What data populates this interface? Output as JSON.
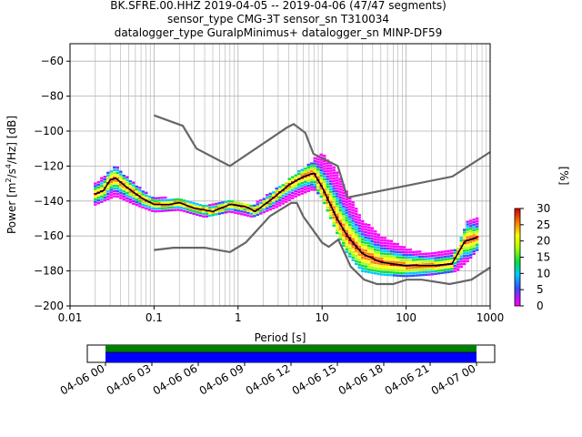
{
  "header": {
    "line1": "BK.SFRE.00.HHZ   2019-04-05 -- 2019-04-06  (47/47 segments)",
    "line2": "sensor_type CMG-3T sensor_sn T310034",
    "line3": "datalogger_type GuralpMinimus+ datalogger_sn MINP-DF59"
  },
  "colorbar": {
    "label": "[%]",
    "ticks": [
      "0",
      "5",
      "10",
      "15",
      "20",
      "25",
      "30"
    ],
    "range": [
      0,
      30
    ]
  },
  "timeline": {
    "ticks": [
      "04-06 00",
      "04-06 03",
      "04-06 06",
      "04-06 09",
      "04-06 12",
      "04-06 15",
      "04-06 18",
      "04-06 21",
      "04-07 00"
    ],
    "colors": {
      "top": "#008000",
      "bottom": "#0000ff"
    }
  },
  "chart_data": {
    "type": "heatmap",
    "title": "BK.SFRE.00.HHZ   2019-04-05 -- 2019-04-06  (47/47 segments)",
    "xlabel": "Period [s]",
    "ylabel": "Power [m²/s⁴/Hz] [dB]",
    "xscale": "log",
    "xlim": [
      0.01,
      1000
    ],
    "ylim": [
      -200,
      -50
    ],
    "xticks": [
      "0.01",
      "0.1",
      "1",
      "10",
      "100",
      "1000"
    ],
    "yticks": [
      "−200",
      "−180",
      "−160",
      "−140",
      "−120",
      "−100",
      "−80",
      "−60"
    ],
    "grid": true,
    "series": [
      {
        "role": "noise-model-high",
        "period": [
          0.1,
          0.22,
          0.32,
          0.8,
          3.8,
          4.6,
          6.3,
          7.9,
          15.4,
          20,
          354.8,
          1000
        ],
        "power": [
          -91,
          -97,
          -110,
          -120,
          -98,
          -96,
          -101,
          -113,
          -120,
          -138,
          -126,
          -112
        ]
      },
      {
        "role": "noise-model-low",
        "period": [
          0.1,
          0.17,
          0.4,
          0.8,
          1.24,
          2.4,
          4.3,
          5,
          6,
          10,
          12,
          15.6,
          21.9,
          31.6,
          45,
          70,
          101,
          154,
          328,
          600,
          1000
        ],
        "power": [
          -168,
          -166.7,
          -166.7,
          -169.2,
          -163.7,
          -148.6,
          -141.1,
          -141.1,
          -149,
          -163.8,
          -166.2,
          -162.1,
          -177.5,
          -185,
          -187.5,
          -187.5,
          -185,
          -185,
          -187.5,
          -185,
          -178
        ]
      },
      {
        "role": "mode",
        "period": [
          0.02,
          0.025,
          0.03,
          0.035,
          0.05,
          0.07,
          0.1,
          0.15,
          0.2,
          0.3,
          0.5,
          0.8,
          1.2,
          1.6,
          2.5,
          4,
          6,
          8,
          10,
          15,
          20,
          30,
          50,
          100,
          200,
          350,
          500,
          700
        ],
        "power": [
          -136,
          -134,
          -128,
          -127,
          -133,
          -138,
          -142,
          -142,
          -141,
          -144,
          -146,
          -142,
          -143,
          -146,
          -139,
          -131,
          -126,
          -124,
          -132,
          -150,
          -160,
          -170,
          -175,
          -177,
          -177,
          -176,
          -163,
          -161
        ]
      }
    ],
    "density": {
      "colormap": "pqlx",
      "envelope_period": [
        0.02,
        0.035,
        0.06,
        0.1,
        0.2,
        0.4,
        0.8,
        1.5,
        3,
        5,
        8,
        10,
        15,
        20,
        30,
        50,
        100,
        200,
        400,
        550,
        700
      ],
      "upper_power": [
        -130,
        -120,
        -130,
        -138,
        -138,
        -142,
        -140,
        -142,
        -132,
        -124,
        -116,
        -112,
        -122,
        -135,
        -150,
        -160,
        -167,
        -170,
        -168,
        -150,
        -150
      ],
      "lower_power": [
        -142,
        -137,
        -142,
        -146,
        -145,
        -149,
        -146,
        -149,
        -143,
        -137,
        -133,
        -138,
        -158,
        -170,
        -180,
        -182,
        -183,
        -182,
        -180,
        -174,
        -168
      ]
    }
  },
  "labels": {
    "xlabel": "Period [s]",
    "ylabel_pre": "Power [m",
    "ylabel_sup1": "2",
    "ylabel_mid": "/s",
    "ylabel_sup2": "4",
    "ylabel_post": "/Hz] [dB]"
  }
}
